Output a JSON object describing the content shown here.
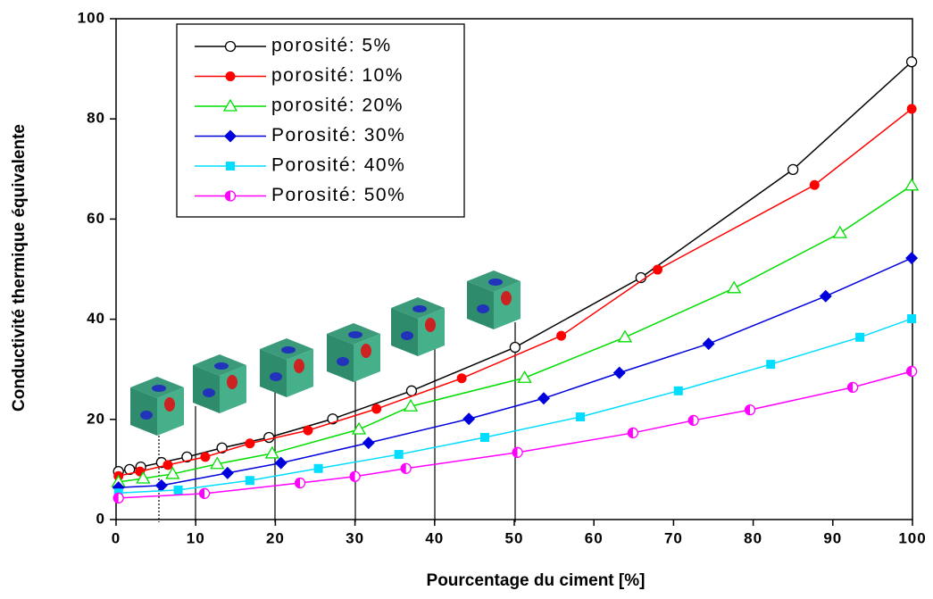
{
  "chart_data": {
    "type": "line",
    "x_label": "Pourcentage du ciment [%]",
    "y_label": "Conductivité thermique équivalente",
    "xlim": [
      0,
      100
    ],
    "xticks": [
      0,
      10,
      20,
      30,
      40,
      50,
      60,
      70,
      80,
      90,
      100
    ],
    "ylim": [
      0,
      100
    ],
    "yticks": [
      0,
      20,
      40,
      60,
      80,
      100
    ],
    "series": [
      {
        "name": "porosité: 5%",
        "color": "#000000",
        "marker": "open-circle",
        "x": [
          0.3,
          1.7,
          3.1,
          5.7,
          8.9,
          13.3,
          19.2,
          27.2,
          37.1,
          50.1,
          65.9,
          85.0,
          99.9
        ],
        "values": [
          9.6,
          10.0,
          10.5,
          11.4,
          12.5,
          14.3,
          16.4,
          20.1,
          25.7,
          34.4,
          48.3,
          69.9,
          91.4
        ]
      },
      {
        "name": "porosité: 10%",
        "color": "#ff0000",
        "marker": "filled-circle",
        "x": [
          0.3,
          3.0,
          6.5,
          11.2,
          16.8,
          24.1,
          32.7,
          43.4,
          55.9,
          68.0,
          87.7,
          99.9
        ],
        "values": [
          8.7,
          9.6,
          10.9,
          12.5,
          15.2,
          17.8,
          22.1,
          28.2,
          36.7,
          49.9,
          66.8,
          82.0
        ]
      },
      {
        "name": "porosité: 20%",
        "color": "#00dd00",
        "marker": "open-triangle",
        "x": [
          0.3,
          3.4,
          7.1,
          12.7,
          19.6,
          30.5,
          37.0,
          51.3,
          63.9,
          77.6,
          90.9,
          99.9
        ],
        "values": [
          7.5,
          8.2,
          9.1,
          11.1,
          13.2,
          18.0,
          22.6,
          28.3,
          36.4,
          46.2,
          57.2,
          66.7
        ]
      },
      {
        "name": "Porosité: 30%",
        "color": "#0000dd",
        "marker": "filled-diamond",
        "x": [
          0.3,
          5.7,
          14.0,
          20.7,
          31.7,
          44.3,
          53.7,
          63.2,
          74.4,
          89.1,
          99.9
        ],
        "values": [
          6.4,
          6.8,
          9.3,
          11.3,
          15.3,
          20.1,
          24.2,
          29.3,
          35.1,
          44.6,
          52.2
        ]
      },
      {
        "name": "Porosité: 40%",
        "color": "#00ddff",
        "marker": "filled-square",
        "x": [
          0.3,
          7.8,
          16.8,
          25.4,
          35.5,
          46.3,
          58.3,
          70.6,
          82.2,
          93.4,
          99.9
        ],
        "values": [
          5.3,
          5.9,
          7.8,
          10.2,
          13.0,
          16.4,
          20.5,
          25.7,
          31.0,
          36.4,
          40.1
        ]
      },
      {
        "name": "Porosité: 50%",
        "color": "#ff00ff",
        "marker": "half-circle",
        "x": [
          0.3,
          11.1,
          23.1,
          30.0,
          36.4,
          50.4,
          64.9,
          72.5,
          79.6,
          92.5,
          99.9
        ],
        "values": [
          4.3,
          5.2,
          7.3,
          8.6,
          10.2,
          13.4,
          17.3,
          19.8,
          21.9,
          26.4,
          29.6
        ]
      }
    ]
  }
}
